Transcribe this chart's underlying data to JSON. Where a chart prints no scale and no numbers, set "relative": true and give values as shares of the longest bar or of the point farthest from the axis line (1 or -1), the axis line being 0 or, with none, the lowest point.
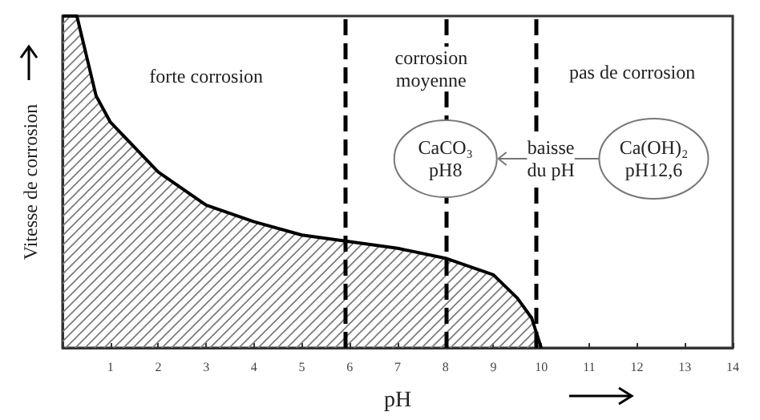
{
  "chart_data": {
    "type": "area",
    "relative": true,
    "xlabel": "pH",
    "ylabel": "Vitesse de corrosion",
    "x": [
      0,
      0.3,
      0.7,
      1,
      2,
      3,
      4,
      5,
      6,
      7,
      8,
      9,
      9.5,
      9.8,
      10
    ],
    "series": [
      {
        "color": "#000000",
        "values": [
          1,
          1,
          0.76,
          0.68,
          0.53,
          0.43,
          0.38,
          0.34,
          0.32,
          0.3,
          0.27,
          0.22,
          0.15,
          0.09,
          0
        ]
      }
    ],
    "xlim": [
      0,
      14
    ],
    "xticks": [
      1,
      2,
      3,
      4,
      5,
      6,
      7,
      8,
      9,
      10,
      11,
      12,
      13,
      14
    ],
    "ref_lines": [
      {
        "axis": "x",
        "value": 5.9,
        "line_style": "dashed",
        "color": "#000000"
      },
      {
        "axis": "x",
        "value": 8,
        "line_style": "dashed",
        "color": "#000000"
      },
      {
        "axis": "x",
        "value": 9.9,
        "line_style": "dashed",
        "color": "#000000"
      }
    ],
    "annotations": [
      "forte corrosion",
      "corrosion\nmoyenne",
      "pas de corrosion",
      "CaCO₃\npH8",
      "baisse\ndu pH",
      "Ca(OH)₂\npH12,6"
    ],
    "grid": false,
    "marker": "none",
    "line_style": "solid"
  }
}
